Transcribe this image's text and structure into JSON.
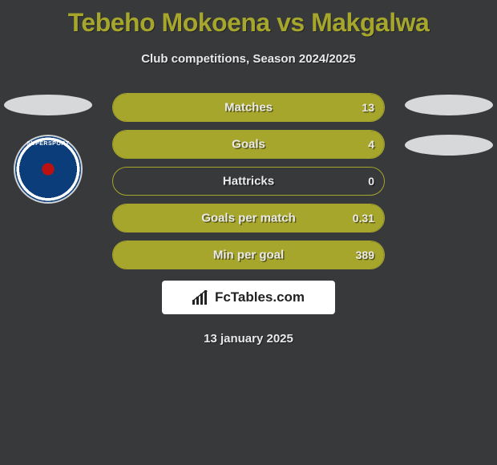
{
  "title": "Tebeho Mokoena vs Makgalwa",
  "subtitle": "Club competitions, Season 2024/2025",
  "date": "13 january 2025",
  "footer_brand": "FcTables.com",
  "colors": {
    "accent": "#a6a52c",
    "background": "#37393b",
    "text": "#e9e9e9",
    "ellipse": "#d7d8d9",
    "badge_blue": "#0b3d7a"
  },
  "left_club_text": "SUPERSPORT",
  "rows": [
    {
      "label": "Matches",
      "left": "",
      "right": "13",
      "fill_left_pct": 0,
      "fill_right_pct": 100
    },
    {
      "label": "Goals",
      "left": "",
      "right": "4",
      "fill_left_pct": 0,
      "fill_right_pct": 100
    },
    {
      "label": "Hattricks",
      "left": "",
      "right": "0",
      "fill_left_pct": 0,
      "fill_right_pct": 0
    },
    {
      "label": "Goals per match",
      "left": "",
      "right": "0.31",
      "fill_left_pct": 0,
      "fill_right_pct": 100
    },
    {
      "label": "Min per goal",
      "left": "",
      "right": "389",
      "fill_left_pct": 0,
      "fill_right_pct": 100
    }
  ]
}
